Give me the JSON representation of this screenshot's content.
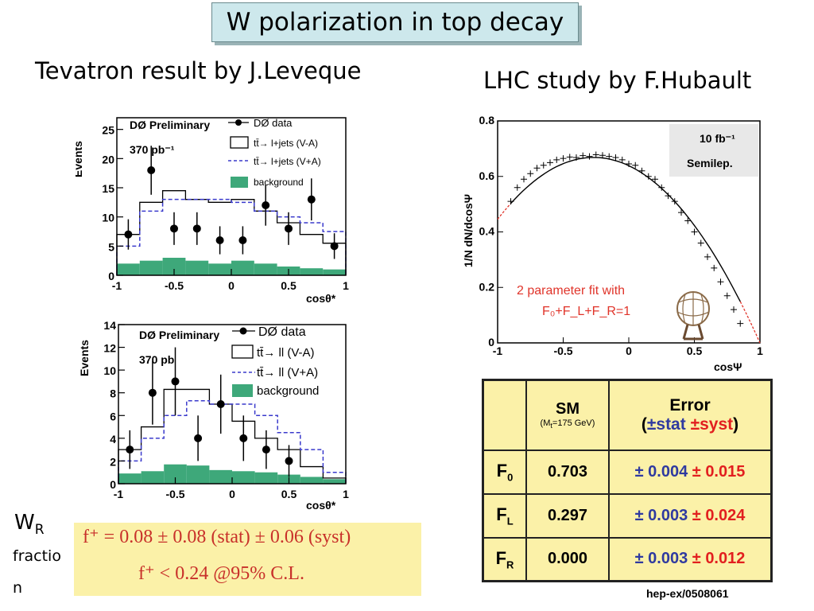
{
  "slide": {
    "title": "W polarization in top decay",
    "left_caption": "Tevatron result by J.Leveque",
    "right_caption": "LHC study by F.Hubault",
    "wr_label": "W",
    "wr_sub": "R",
    "wr_fraction_1": "fractio",
    "wr_fraction_2": "n",
    "formula_line1": "f⁺ = 0.08 ± 0.08 (stat) ± 0.06 (syst)",
    "formula_line2": "f⁺ < 0.24  @95% C.L.",
    "reference": "hep-ex/0508061"
  },
  "table": {
    "header_sm": "SM",
    "header_sm_note": "(M",
    "header_sm_note_sub": "t",
    "header_sm_note_rest": "=175 GeV)",
    "header_error": "Error",
    "header_open": "(",
    "header_stat": "±stat",
    "header_syst": "±syst",
    "header_close": ")",
    "rows": [
      {
        "label": "F",
        "sub": "0",
        "sm": "0.703",
        "pm1": "± ",
        "stat": "0.004",
        "pm2": " ± ",
        "syst": "0.015"
      },
      {
        "label": "F",
        "sub": "L",
        "sm": "0.297",
        "pm1": "± ",
        "stat": "0.003",
        "pm2": " ± ",
        "syst": "0.024"
      },
      {
        "label": "F",
        "sub": "R",
        "sm": "0.000",
        "pm1": "± ",
        "stat": "0.003",
        "pm2": " ± ",
        "syst": "0.012"
      }
    ]
  },
  "chart_data": [
    {
      "type": "bar",
      "ylabel": "Events",
      "xlabel": "cosθ*",
      "xlim": [
        -1,
        1
      ],
      "ylim": [
        0,
        27
      ],
      "xticks": [
        "-1",
        "-0.5",
        "0",
        "0.5",
        "1"
      ],
      "yticks": [
        "0",
        "5",
        "10",
        "15",
        "20",
        "25"
      ],
      "annotations": [
        "DØ Preliminary",
        "370 pb⁻¹"
      ],
      "legend": {
        "data": "DØ data",
        "va": "tt̄→ l+jets (V-A)",
        "vpa": "tt̄→ l+jets (V+A)",
        "bkg": "background"
      },
      "bin_edges": [
        -1,
        -0.8,
        -0.6,
        -0.4,
        -0.2,
        0,
        0.2,
        0.4,
        0.6,
        0.8,
        1
      ],
      "series": [
        {
          "name": "tt̄→ l+jets (V-A)",
          "values": [
            7,
            12.5,
            14.5,
            13,
            12.5,
            13,
            11,
            9,
            7,
            5.5
          ]
        },
        {
          "name": "tt̄→ l+jets (V+A)",
          "values": [
            5,
            11,
            13,
            13,
            13,
            12.5,
            11,
            10,
            9,
            7.5
          ]
        },
        {
          "name": "background",
          "values": [
            2,
            2.5,
            3,
            2.5,
            2,
            2.5,
            2,
            1.5,
            1.2,
            1
          ]
        }
      ],
      "data_points": [
        {
          "x": -0.9,
          "y": 7,
          "err": 2.6
        },
        {
          "x": -0.7,
          "y": 18,
          "err": 4.2
        },
        {
          "x": -0.5,
          "y": 8,
          "err": 2.8
        },
        {
          "x": -0.3,
          "y": 8,
          "err": 2.8
        },
        {
          "x": -0.1,
          "y": 6,
          "err": 2.4
        },
        {
          "x": 0.1,
          "y": 6,
          "err": 2.4
        },
        {
          "x": 0.3,
          "y": 12,
          "err": 3.5
        },
        {
          "x": 0.5,
          "y": 8,
          "err": 2.8
        },
        {
          "x": 0.7,
          "y": 13,
          "err": 3.6
        },
        {
          "x": 0.9,
          "y": 5,
          "err": 2.2
        }
      ]
    },
    {
      "type": "bar",
      "ylabel": "Events",
      "xlabel": "cosθ*",
      "xlim": [
        -1,
        1
      ],
      "ylim": [
        0,
        14
      ],
      "xticks": [
        "-1",
        "-0.5",
        "0",
        "0.5",
        "1"
      ],
      "yticks": [
        "0",
        "2",
        "4",
        "6",
        "8",
        "10",
        "12",
        "14"
      ],
      "annotations": [
        "DØ Preliminary",
        "370 pb"
      ],
      "legend": {
        "data": "DØ data",
        "va": "tt̄→ ll (V-A)",
        "vpa": "tt̄→ ll (V+A)",
        "bkg": "background"
      },
      "bin_edges": [
        -1,
        -0.8,
        -0.6,
        -0.4,
        -0.2,
        0,
        0.2,
        0.4,
        0.6,
        0.8,
        1
      ],
      "series": [
        {
          "name": "tt̄→ ll (V-A)",
          "values": [
            3,
            5,
            8.3,
            8.3,
            7,
            5.5,
            4,
            3,
            1.5,
            0.5
          ]
        },
        {
          "name": "tt̄→ ll (V+A)",
          "values": [
            2,
            4,
            6,
            7.3,
            7,
            7,
            6,
            4.5,
            3,
            1
          ]
        },
        {
          "name": "background",
          "values": [
            0.9,
            1.1,
            1.7,
            1.6,
            1.2,
            1.1,
            1,
            0.8,
            0.6,
            0.4
          ]
        }
      ],
      "data_points": [
        {
          "x": -0.9,
          "y": 3,
          "err": 1.7
        },
        {
          "x": -0.7,
          "y": 8,
          "err": 2.8
        },
        {
          "x": -0.5,
          "y": 9,
          "err": 3
        },
        {
          "x": -0.3,
          "y": 4,
          "err": 2
        },
        {
          "x": -0.1,
          "y": 7,
          "err": 2.6
        },
        {
          "x": 0.1,
          "y": 4,
          "err": 2
        },
        {
          "x": 0.3,
          "y": 3,
          "err": 1.7
        },
        {
          "x": 0.5,
          "y": 2,
          "err": 1.4
        }
      ]
    },
    {
      "type": "line",
      "ylabel": "1/N dN/dcosΨ",
      "xlabel": "cosΨ",
      "xlim": [
        -1,
        1
      ],
      "ylim": [
        0,
        0.8
      ],
      "xticks": [
        "-1",
        "-0.5",
        "0",
        "0.5",
        "1"
      ],
      "yticks": [
        "0",
        "0.2",
        "0.4",
        "0.6",
        "0.8"
      ],
      "annotations": [
        "10 fb⁻¹",
        "Semilep.",
        "2 parameter fit with",
        "F₀+F_L+F_R=1"
      ],
      "fit": {
        "F0": 0.703,
        "FL": 0.297,
        "FR": 0.0
      },
      "points_x": [
        -0.9,
        -0.85,
        -0.8,
        -0.75,
        -0.7,
        -0.65,
        -0.6,
        -0.55,
        -0.5,
        -0.45,
        -0.4,
        -0.35,
        -0.3,
        -0.25,
        -0.2,
        -0.15,
        -0.1,
        -0.05,
        0,
        0.05,
        0.1,
        0.15,
        0.2,
        0.25,
        0.3,
        0.35,
        0.4,
        0.45,
        0.5,
        0.55,
        0.6,
        0.65,
        0.7,
        0.75,
        0.8,
        0.85
      ],
      "points_y": [
        0.51,
        0.56,
        0.59,
        0.61,
        0.63,
        0.64,
        0.65,
        0.66,
        0.665,
        0.67,
        0.668,
        0.675,
        0.672,
        0.678,
        0.676,
        0.672,
        0.668,
        0.66,
        0.645,
        0.64,
        0.62,
        0.6,
        0.59,
        0.56,
        0.53,
        0.51,
        0.47,
        0.44,
        0.4,
        0.36,
        0.31,
        0.27,
        0.22,
        0.17,
        0.12,
        0.07
      ]
    }
  ]
}
